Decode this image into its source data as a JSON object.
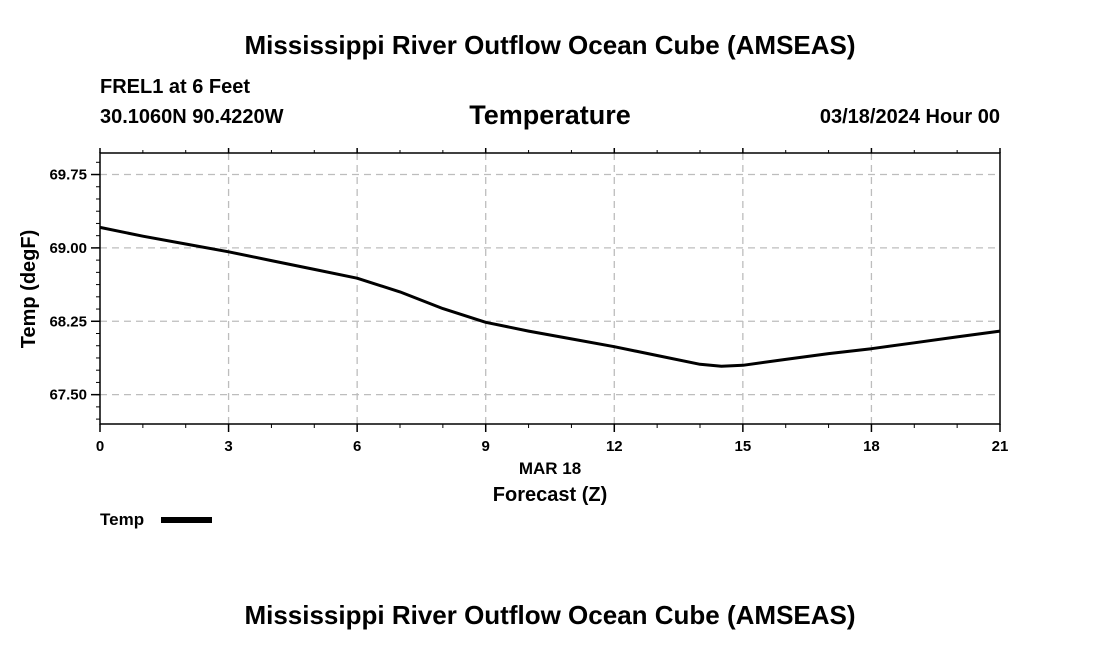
{
  "header": {
    "title": "Mississippi River Outflow Ocean Cube (AMSEAS)",
    "station": "FREL1 at 6 Feet",
    "coords": "30.1060N  90.4220W",
    "variable": "Temperature",
    "datetime": "03/18/2024 Hour 00"
  },
  "footer": {
    "title": "Mississippi River Outflow Ocean Cube (AMSEAS)"
  },
  "legend": {
    "label": "Temp"
  },
  "chart_data": {
    "type": "line",
    "title": "Temperature",
    "xlabel": "Forecast (Z)",
    "xsublabel": "MAR 18",
    "ylabel": "Temp (degF)",
    "xlim": [
      0,
      21
    ],
    "ylim": [
      67.2,
      69.97
    ],
    "xticks": [
      0,
      3,
      6,
      9,
      12,
      15,
      18,
      21
    ],
    "yticks": [
      67.5,
      68.25,
      69.0,
      69.75
    ],
    "ytick_labels": [
      "67.50",
      "68.25",
      "69.00",
      "69.75"
    ],
    "grid": true,
    "line_color": "#000000",
    "series": [
      {
        "name": "Temp",
        "x": [
          0,
          1,
          2,
          3,
          4,
          5,
          6,
          7,
          8,
          9,
          10,
          11,
          12,
          13,
          14,
          14.5,
          15,
          16,
          17,
          18,
          19,
          20,
          21
        ],
        "values": [
          69.21,
          69.12,
          69.04,
          68.96,
          68.87,
          68.78,
          68.69,
          68.55,
          68.38,
          68.24,
          68.15,
          68.07,
          67.99,
          67.9,
          67.81,
          67.79,
          67.8,
          67.86,
          67.92,
          67.97,
          68.03,
          68.09,
          68.15
        ]
      }
    ]
  }
}
